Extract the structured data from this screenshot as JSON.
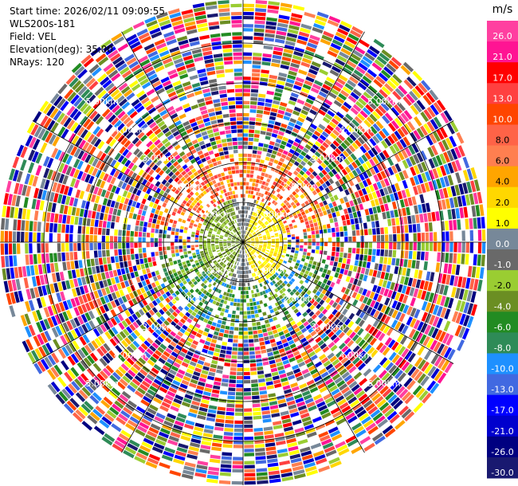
{
  "header": {
    "start_time": "Start time: 2026/02/11 09:09:55",
    "site": "WLS200s-181",
    "field": "Field: VEL",
    "elevation": "Elevation(deg): 35.00",
    "nrays": "NRays: 120"
  },
  "chart_data": {
    "type": "heatmap",
    "projection": "polar (PPI scan)",
    "field": "VEL",
    "units": "m/s",
    "elevation_deg": 35.0,
    "nrays": 120,
    "range_rings_km": [
      1,
      2,
      3,
      4,
      5
    ],
    "range_ring_labels": [
      "1.00km",
      "2.00km",
      "3.00km",
      "4.00km",
      "5.00km"
    ],
    "colorbar": {
      "title": "m/s",
      "bins": [
        {
          "label": "26.0",
          "color": "#ff3fa0"
        },
        {
          "label": "21.0",
          "color": "#ff1493"
        },
        {
          "label": "17.0",
          "color": "#ff0000"
        },
        {
          "label": "13.0",
          "color": "#ff4040"
        },
        {
          "label": "10.0",
          "color": "#ff4500"
        },
        {
          "label": "8.0",
          "color": "#ff6347"
        },
        {
          "label": "6.0",
          "color": "#ff7f50"
        },
        {
          "label": "4.0",
          "color": "#ffa500"
        },
        {
          "label": "2.0",
          "color": "#ffd700"
        },
        {
          "label": "1.0",
          "color": "#ffff00"
        },
        {
          "label": "0.0",
          "color": "#778899"
        },
        {
          "label": "-1.0",
          "color": "#696969"
        },
        {
          "label": "-2.0",
          "color": "#9acd32"
        },
        {
          "label": "-4.0",
          "color": "#6b8e23"
        },
        {
          "label": "-6.0",
          "color": "#228b22"
        },
        {
          "label": "-8.0",
          "color": "#2e8b57"
        },
        {
          "label": "-10.0",
          "color": "#1e90ff"
        },
        {
          "label": "-13.0",
          "color": "#4169e1"
        },
        {
          "label": "-17.0",
          "color": "#0000ff"
        },
        {
          "label": "-21.0",
          "color": "#0000cd"
        },
        {
          "label": "-26.0",
          "color": "#000080"
        },
        {
          "label": "-30.0",
          "color": "#191970"
        }
      ]
    },
    "grid": true,
    "azimuth_lines": true
  }
}
